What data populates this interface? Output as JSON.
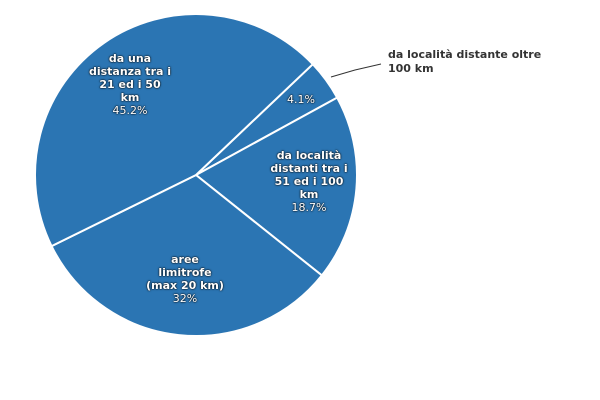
{
  "chart_data": {
    "type": "pie",
    "title": "",
    "start_angle_deg": -43.5,
    "slice_color": "#2b75b3",
    "border_color": "#ffffff",
    "slices": [
      {
        "name": "da località distante oltre 100 km",
        "value": 4.1,
        "label_pct": "4.1%"
      },
      {
        "name": "da località distanti tra i 51 ed i 100 km",
        "value": 18.7,
        "label_pct": "18.7%"
      },
      {
        "name": "aree limitrofe (max 20 km)",
        "value": 32,
        "label_pct": "32%"
      },
      {
        "name": "da una distanza tra i 21 ed i 50 km",
        "value": 45.2,
        "label_pct": "45.2%"
      }
    ]
  },
  "labels": {
    "s0_outside_line1": "da località distante oltre",
    "s0_outside_line2": "100 km",
    "s0_pct": "4.1%",
    "s1_line1": "da località",
    "s1_line2": "distanti tra i",
    "s1_line3": "51 ed i 100",
    "s1_line4": "km",
    "s1_pct": "18.7%",
    "s2_line1": "aree",
    "s2_line2": "limitrofe",
    "s2_line3": "(max 20 km)",
    "s2_pct": "32%",
    "s3_line1": "da una",
    "s3_line2": "distanza tra i",
    "s3_line3": "21 ed i 50",
    "s3_line4": "km",
    "s3_pct": "45.2%"
  }
}
